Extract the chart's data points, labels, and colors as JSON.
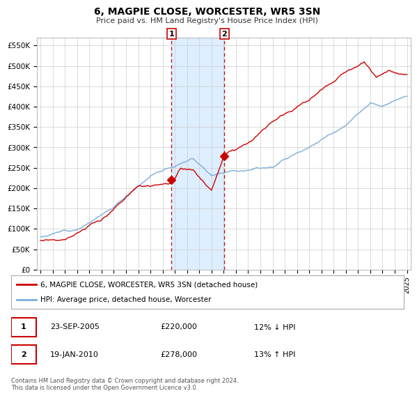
{
  "title": "6, MAGPIE CLOSE, WORCESTER, WR5 3SN",
  "subtitle": "Price paid vs. HM Land Registry's House Price Index (HPI)",
  "legend_line1": "6, MAGPIE CLOSE, WORCESTER, WR5 3SN (detached house)",
  "legend_line2": "HPI: Average price, detached house, Worcester",
  "footer1": "Contains HM Land Registry data © Crown copyright and database right 2024.",
  "footer2": "This data is licensed under the Open Government Licence v3.0.",
  "marker1_date": "23-SEP-2005",
  "marker1_price": "£220,000",
  "marker1_hpi": "12% ↓ HPI",
  "marker2_date": "19-JAN-2010",
  "marker2_price": "£278,000",
  "marker2_hpi": "13% ↑ HPI",
  "red_color": "#cc0000",
  "blue_color": "#7aaddc",
  "shade_color": "#ddeeff",
  "grid_color": "#cccccc",
  "background_color": "#ffffff",
  "ylim": [
    0,
    570000
  ],
  "yticks": [
    0,
    50000,
    100000,
    150000,
    200000,
    250000,
    300000,
    350000,
    400000,
    450000,
    500000,
    550000
  ],
  "ytick_labels": [
    "£0",
    "£50K",
    "£100K",
    "£150K",
    "£200K",
    "£250K",
    "£300K",
    "£350K",
    "£400K",
    "£450K",
    "£500K",
    "£550K"
  ],
  "xlim_start": 1994.7,
  "xlim_end": 2025.3,
  "xticks": [
    1995,
    1996,
    1997,
    1998,
    1999,
    2000,
    2001,
    2002,
    2003,
    2004,
    2005,
    2006,
    2007,
    2008,
    2009,
    2010,
    2011,
    2012,
    2013,
    2014,
    2015,
    2016,
    2017,
    2018,
    2019,
    2020,
    2021,
    2022,
    2023,
    2024,
    2025
  ],
  "marker1_x": 2005.73,
  "marker1_y": 220000,
  "marker2_x": 2010.05,
  "marker2_y": 278000,
  "shade_x1": 2005.73,
  "shade_x2": 2010.05
}
